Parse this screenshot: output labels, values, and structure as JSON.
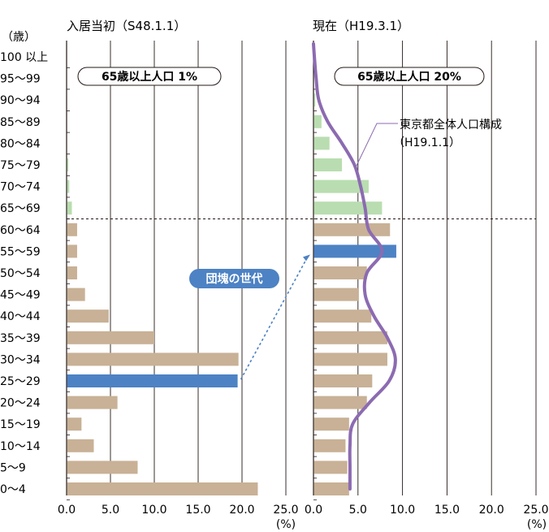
{
  "chart_data": [
    {
      "type": "bar",
      "orientation": "horizontal",
      "title": "入居当初（S48.1.1）",
      "ylabel": "（歳）",
      "xunit": "(%)",
      "xlim": [
        0,
        25
      ],
      "xticks": [
        "0.0",
        "5.0",
        "10.0",
        "15.0",
        "20.0",
        "25.0"
      ],
      "categories": [
        "100 以上",
        "95～99",
        "90～94",
        "85～89",
        "80～84",
        "75～79",
        "70～74",
        "65～69",
        "60～64",
        "55～59",
        "50～54",
        "45～49",
        "40～44",
        "35～39",
        "30～34",
        "25～29",
        "20～24",
        "15～19",
        "10～14",
        "5～9",
        "0～4"
      ],
      "values": [
        0,
        0,
        0,
        0,
        0,
        0.2,
        0.3,
        0.6,
        1.2,
        1.2,
        1.2,
        2.1,
        4.8,
        10.0,
        19.6,
        19.5,
        5.8,
        1.7,
        3.1,
        8.1,
        21.8
      ],
      "highlight_index": 15,
      "badge": "65歳以上人口 1%"
    },
    {
      "type": "bar",
      "orientation": "horizontal",
      "title": "現在（H19.3.1）",
      "xunit": "(%)",
      "xlim": [
        0,
        25
      ],
      "xticks": [
        "0.0",
        "5.0",
        "10.0",
        "15.0",
        "20.0",
        "25.0"
      ],
      "categories": [
        "100 以上",
        "95～99",
        "90～94",
        "85～89",
        "80～84",
        "75～79",
        "70～74",
        "65～69",
        "60～64",
        "55～59",
        "50～54",
        "45～49",
        "40～44",
        "35～39",
        "30～34",
        "25～29",
        "20～24",
        "15～19",
        "10～14",
        "5～9",
        "0～4"
      ],
      "values": [
        0,
        0,
        0.2,
        0.9,
        1.8,
        3.2,
        6.2,
        7.7,
        8.6,
        9.3,
        6.0,
        5.1,
        6.5,
        8.3,
        8.3,
        6.6,
        6.0,
        4.0,
        3.6,
        3.8,
        4.0
      ],
      "highlight_index": 9,
      "badge": "65歳以上人口 20%",
      "reference_line": {
        "name": "東京都全体人口構成（H19.1.1）",
        "values": [
          0.1,
          0.3,
          0.6,
          1.6,
          3.2,
          4.6,
          5.3,
          5.8,
          6.2,
          7.7,
          6.0,
          5.8,
          6.8,
          8.3,
          9.2,
          8.5,
          6.3,
          4.4,
          4.1,
          4.1,
          4.1
        ]
      }
    }
  ],
  "annotations": {
    "dankai": "団塊の世代",
    "tokyo_label_line1": "東京都全体人口構成",
    "tokyo_label_line2": "（H19.1.1）"
  },
  "colors": {
    "bar_young": "#c8b196",
    "bar_old": "#b9ddb0",
    "bar_highlight": "#4d82c4",
    "reference_line": "#8c6bb1",
    "dankai_badge": "#4d82c4",
    "grid": "#231815"
  }
}
